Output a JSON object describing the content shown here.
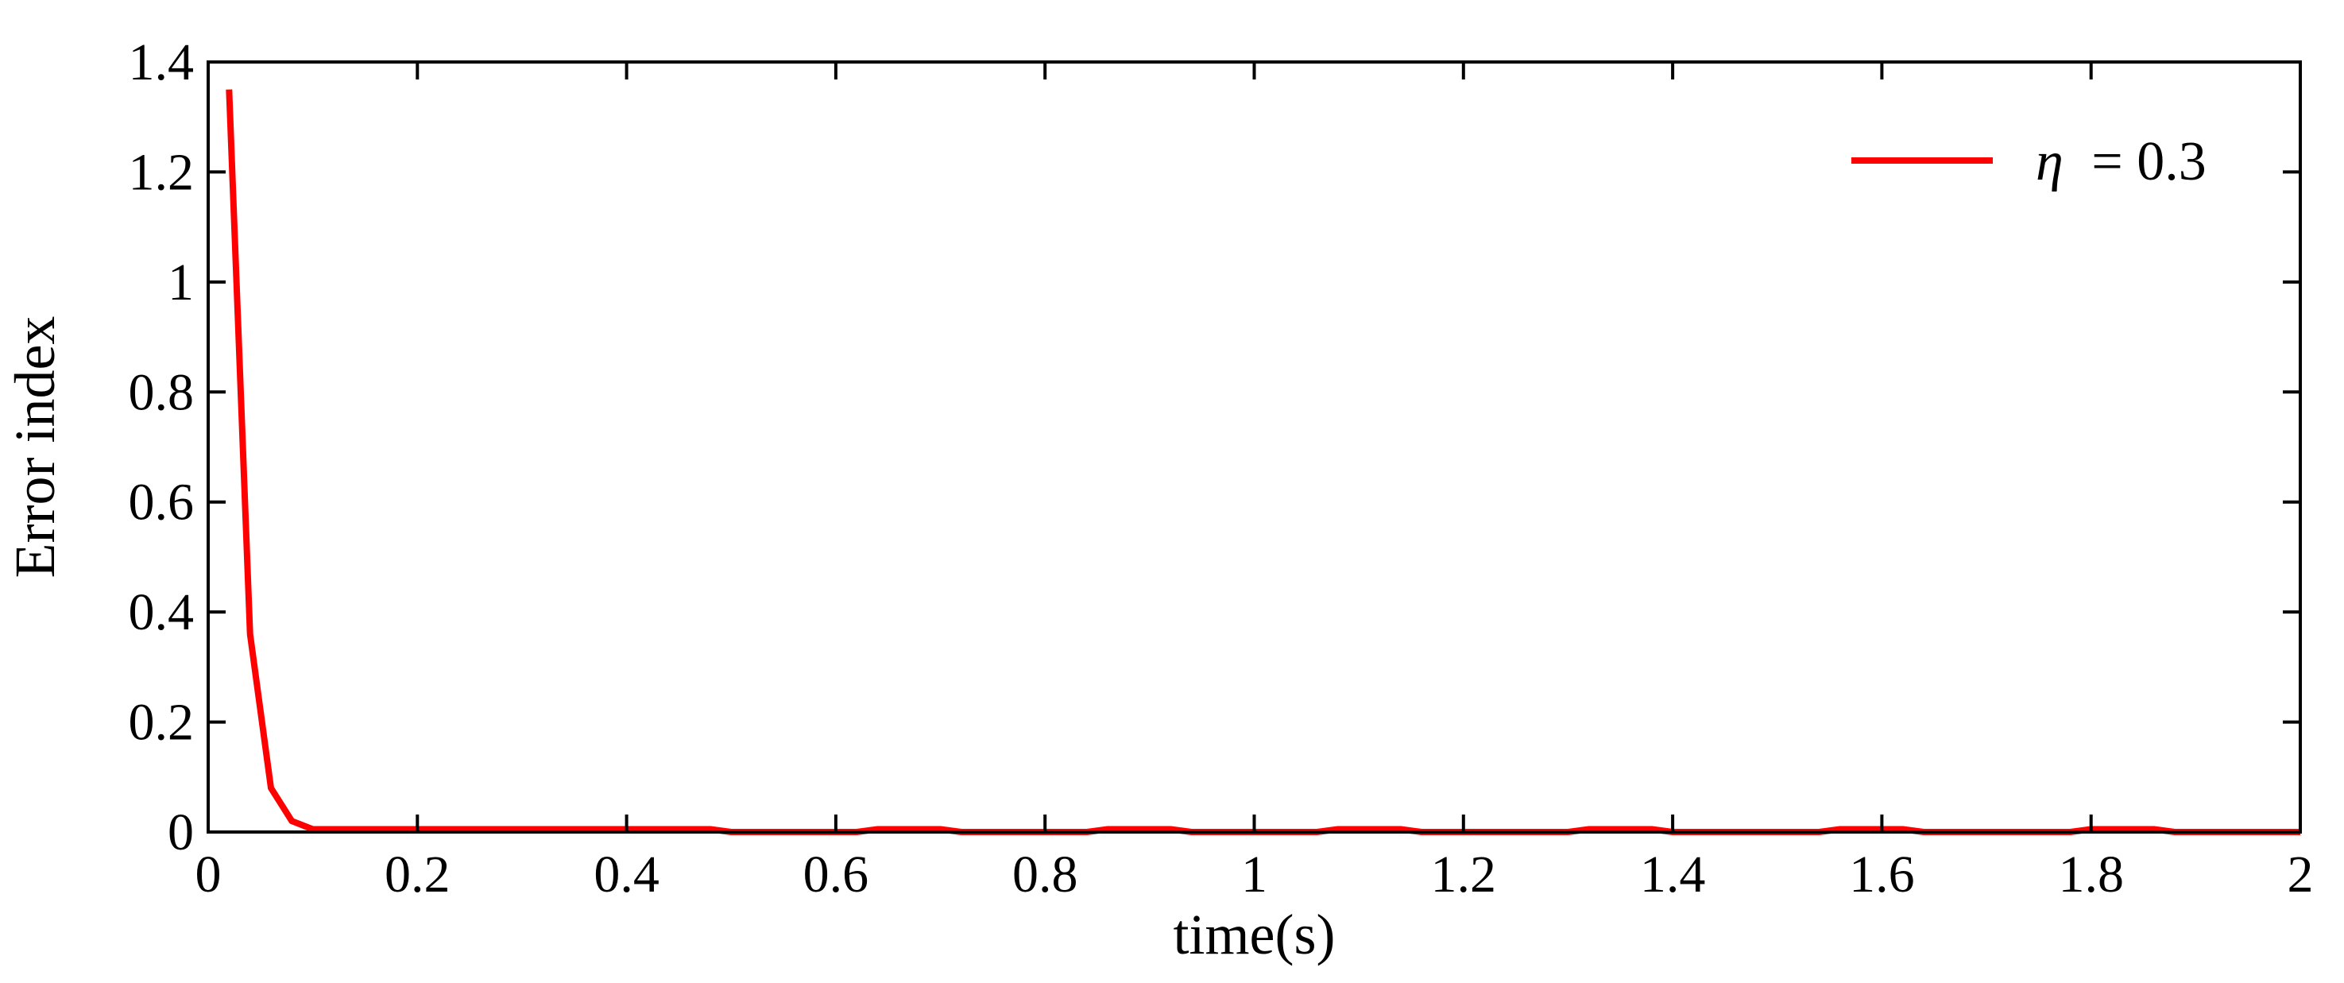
{
  "chart_data": {
    "type": "line",
    "title": "",
    "xlabel": "time(s)",
    "ylabel": "Error index",
    "xlim": [
      0,
      2
    ],
    "ylim": [
      0,
      1.4
    ],
    "x_ticks": [
      0,
      0.2,
      0.4,
      0.6,
      0.8,
      1,
      1.2,
      1.4,
      1.6,
      1.8,
      2
    ],
    "x_tick_labels": [
      "0",
      "0.2",
      "0.4",
      "0.6",
      "0.8",
      "1",
      "1.2",
      "1.4",
      "1.6",
      "1.8",
      "2"
    ],
    "y_ticks": [
      0,
      0.2,
      0.4,
      0.6,
      0.8,
      1,
      1.2,
      1.4
    ],
    "y_tick_labels": [
      "0",
      "0.2",
      "0.4",
      "0.6",
      "0.8",
      "1",
      "1.2",
      "1.4"
    ],
    "grid": false,
    "legend_position": "top-right",
    "series": [
      {
        "name": "η = 0.3",
        "legend_symbol": "η",
        "legend_value": "= 0.3",
        "color": "#ff0000",
        "x": [
          0.02,
          0.04,
          0.06,
          0.08,
          0.1,
          0.12,
          0.48,
          0.5,
          0.62,
          0.64,
          0.7,
          0.72,
          0.84,
          0.86,
          0.92,
          0.94,
          1.06,
          1.08,
          1.14,
          1.16,
          1.3,
          1.32,
          1.38,
          1.4,
          1.54,
          1.56,
          1.62,
          1.64,
          1.78,
          1.8,
          1.86,
          1.88,
          2.0
        ],
        "y": [
          1.35,
          0.36,
          0.08,
          0.02,
          0.005,
          0.005,
          0.005,
          0.0,
          0.0,
          0.005,
          0.005,
          0.0,
          0.0,
          0.005,
          0.005,
          0.0,
          0.0,
          0.005,
          0.005,
          0.0,
          0.0,
          0.005,
          0.005,
          0.0,
          0.0,
          0.005,
          0.005,
          0.0,
          0.0,
          0.005,
          0.005,
          0.0,
          0.0
        ]
      }
    ]
  }
}
